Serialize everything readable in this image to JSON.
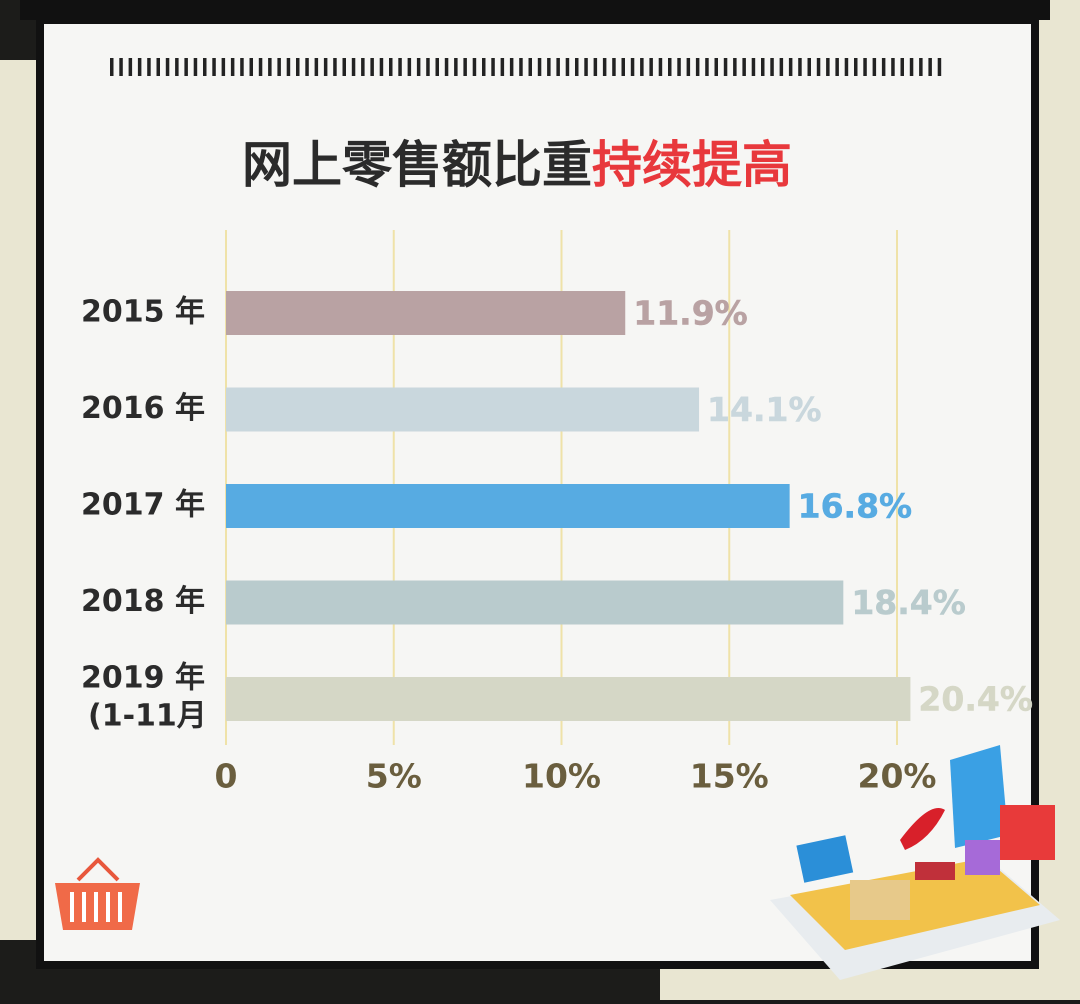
{
  "chart_data": {
    "type": "bar",
    "orientation": "horizontal",
    "title": "网上零售额比重",
    "title_highlight": "持续提高",
    "categories": [
      "2015 年",
      "2016 年",
      "2017 年",
      "2018 年",
      "2019 年"
    ],
    "annotation": "(1-11月",
    "values": [
      11.9,
      14.1,
      16.8,
      18.4,
      20.4
    ],
    "value_labels": [
      "11.9%",
      "14.1%",
      "16.8%",
      "18.4%",
      "20.4%"
    ],
    "colors": [
      "#b9a2a3",
      "#c9d7dd",
      "#57abe2",
      "#b9cbcd",
      "#d5d7c6"
    ],
    "xlim": [
      0,
      20
    ],
    "xticks": [
      0,
      {
        "value": 5,
        "label": "5%"
      },
      {
        "value": 10,
        "label": "10%"
      },
      {
        "value": 15,
        "label": "15%"
      },
      {
        "value": 20,
        "label": "20%"
      }
    ],
    "grid": true
  }
}
